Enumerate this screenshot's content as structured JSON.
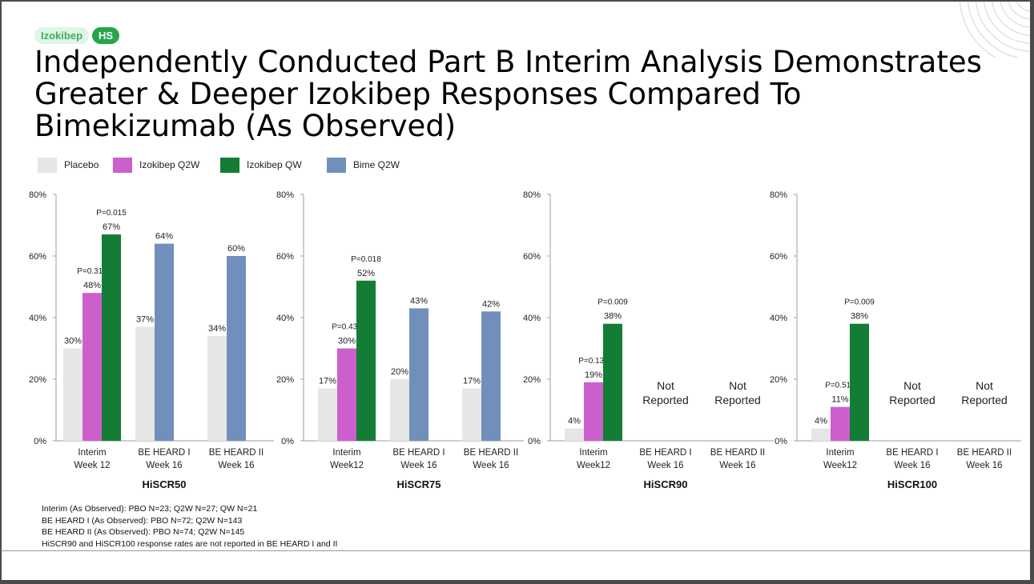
{
  "badges": {
    "drug": "Izokibep",
    "indication": "HS"
  },
  "title": "Independently Conducted Part B Interim Analysis Demonstrates Greater & Deeper Izokibep Responses Compared To Bimekizumab (As Observed)",
  "legend": [
    {
      "label": "Placebo",
      "color": "#e6e6e6"
    },
    {
      "label": "Izokibep Q2W",
      "color": "#cc5fcc"
    },
    {
      "label": "Izokibep QW",
      "color": "#137d36"
    },
    {
      "label": "Bime Q2W",
      "color": "#7090bb"
    }
  ],
  "chart_data": [
    {
      "type": "bar",
      "title": "HiSCR50",
      "ylim": [
        0,
        80
      ],
      "yticks": [
        "0%",
        "20%",
        "40%",
        "60%",
        "80%"
      ],
      "groups": [
        {
          "label": [
            "Interim",
            "Week 12"
          ],
          "bars": [
            {
              "series": "Placebo",
              "value": 30,
              "label": "30%"
            },
            {
              "series": "Izokibep Q2W",
              "value": 48,
              "label": "48%",
              "p": "P=0.313"
            },
            {
              "series": "Izokibep QW",
              "value": 67,
              "label": "67%",
              "p": "P=0.015"
            }
          ]
        },
        {
          "label": [
            "BE HEARD I",
            "Week 16"
          ],
          "bars": [
            {
              "series": "Placebo",
              "value": 37,
              "label": "37%"
            },
            {
              "series": "Bime Q2W",
              "value": 64,
              "label": "64%"
            }
          ]
        },
        {
          "label": [
            "BE HEARD II",
            "Week 16"
          ],
          "bars": [
            {
              "series": "Placebo",
              "value": 34,
              "label": "34%"
            },
            {
              "series": "Bime Q2W",
              "value": 60,
              "label": "60%"
            }
          ]
        }
      ]
    },
    {
      "type": "bar",
      "title": "HiSCR75",
      "ylim": [
        0,
        80
      ],
      "yticks": [
        "0%",
        "20%",
        "40%",
        "60%",
        "80%"
      ],
      "groups": [
        {
          "label": [
            "Interim",
            "Week12"
          ],
          "bars": [
            {
              "series": "Placebo",
              "value": 17,
              "label": "17%"
            },
            {
              "series": "Izokibep Q2W",
              "value": 30,
              "label": "30%",
              "p": "P=0.435"
            },
            {
              "series": "Izokibep QW",
              "value": 52,
              "label": "52%",
              "p": "P=0.018"
            }
          ]
        },
        {
          "label": [
            "BE HEARD I",
            "Week 16"
          ],
          "bars": [
            {
              "series": "Placebo",
              "value": 20,
              "label": "20%"
            },
            {
              "series": "Bime Q2W",
              "value": 43,
              "label": "43%"
            }
          ]
        },
        {
          "label": [
            "BE HEARD II",
            "Week 16"
          ],
          "bars": [
            {
              "series": "Placebo",
              "value": 17,
              "label": "17%"
            },
            {
              "series": "Bime Q2W",
              "value": 42,
              "label": "42%"
            }
          ]
        }
      ]
    },
    {
      "type": "bar",
      "title": "HiSCR90",
      "ylim": [
        0,
        80
      ],
      "yticks": [
        "0%",
        "20%",
        "40%",
        "60%",
        "80%"
      ],
      "groups": [
        {
          "label": [
            "Interim",
            "Week12"
          ],
          "bars": [
            {
              "series": "Placebo",
              "value": 4,
              "label": "4%"
            },
            {
              "series": "Izokibep Q2W",
              "value": 19,
              "label": "19%",
              "p": "P=0.133"
            },
            {
              "series": "Izokibep QW",
              "value": 38,
              "label": "38%",
              "p": "P=0.009"
            }
          ]
        },
        {
          "label": [
            "BE HEARD I",
            "Week 16"
          ],
          "bars": [],
          "note": [
            "Not",
            "Reported"
          ]
        },
        {
          "label": [
            "BE HEARD II",
            "Week 16"
          ],
          "bars": [],
          "note": [
            "Not",
            "Reported"
          ]
        }
      ]
    },
    {
      "type": "bar",
      "title": "HiSCR100",
      "ylim": [
        0,
        80
      ],
      "yticks": [
        "0%",
        "20%",
        "40%",
        "60%",
        "80%"
      ],
      "groups": [
        {
          "label": [
            "Interim",
            "Week12"
          ],
          "bars": [
            {
              "series": "Placebo",
              "value": 4,
              "label": "4%"
            },
            {
              "series": "Izokibep Q2W",
              "value": 11,
              "label": "11%",
              "p": "P=0.518"
            },
            {
              "series": "Izokibep QW",
              "value": 38,
              "label": "38%",
              "p": "P=0.009"
            }
          ]
        },
        {
          "label": [
            "BE HEARD I",
            "Week 16"
          ],
          "bars": [],
          "note": [
            "Not",
            "Reported"
          ]
        },
        {
          "label": [
            "BE HEARD II",
            "Week 16"
          ],
          "bars": [],
          "note": [
            "Not",
            "Reported"
          ]
        }
      ]
    }
  ],
  "footnotes": [
    "Interim (As Observed): PBO N=23; Q2W N=27; QW N=21",
    "BE HEARD I (As Observed): PBO N=72; Q2W N=143",
    "BE HEARD II (As Observed): PBO N=74; Q2W N=145",
    "HiSCR90 and HiSCR100 response rates are not reported in BE HEARD I and II"
  ]
}
